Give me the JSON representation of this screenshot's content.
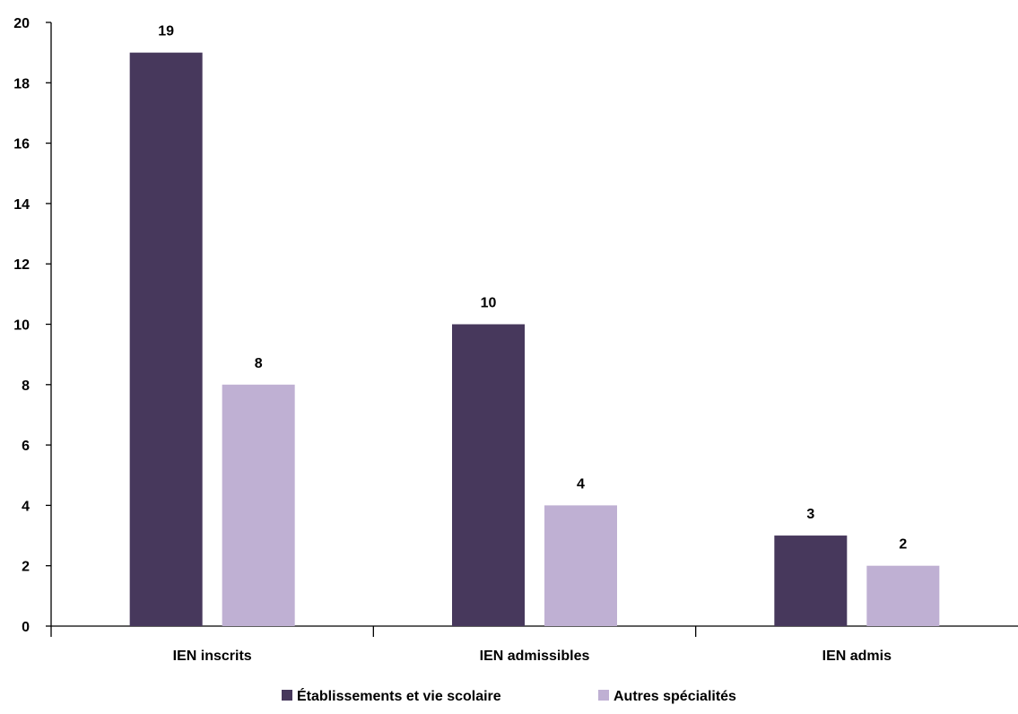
{
  "chart_data": {
    "type": "bar",
    "categories": [
      "IEN inscrits",
      "IEN admissibles",
      "IEN admis"
    ],
    "series": [
      {
        "name": "Établissements et vie scolaire",
        "values": [
          19,
          10,
          3
        ],
        "color": "#47385c"
      },
      {
        "name": "Autres spécialités",
        "values": [
          8,
          4,
          2
        ],
        "color": "#bfb0d3"
      }
    ],
    "ylim": [
      0,
      20
    ],
    "yticks": [
      0,
      2,
      4,
      6,
      8,
      10,
      12,
      14,
      16,
      18,
      20
    ],
    "data_labels": true,
    "grid": false,
    "legend_position": "bottom",
    "title": "",
    "xlabel": "",
    "ylabel": ""
  }
}
